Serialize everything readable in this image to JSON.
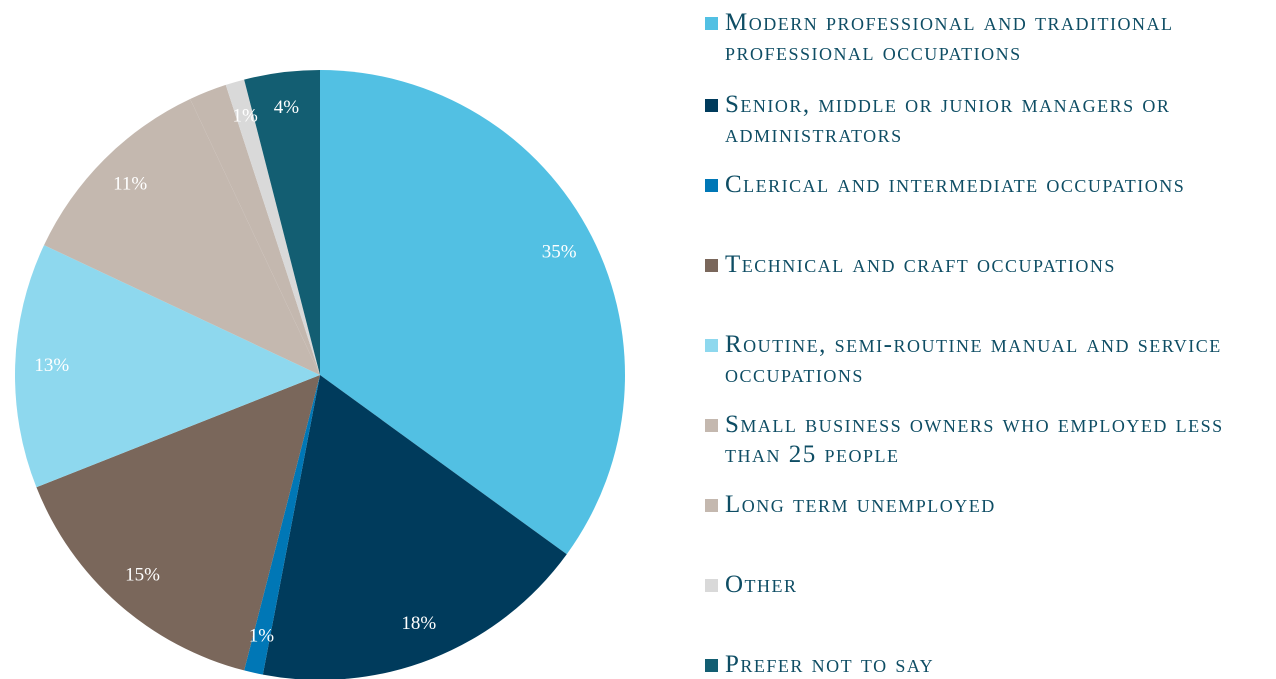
{
  "chart_data": {
    "type": "pie",
    "categories": [
      "Modern professional and traditional professional occupations",
      "Senior, middle or junior managers or administrators",
      "Clerical and intermediate occupations",
      "Technical and craft occupations",
      "Routine, semi-routine manual and service occupations",
      "Small business owners who employed less than 25 people",
      "Long term unemployed",
      "Other",
      "Prefer not to say"
    ],
    "values": [
      35,
      18,
      1,
      15,
      13,
      11,
      2,
      1,
      4
    ],
    "value_labels": [
      "35%",
      "18%",
      "1%",
      "15%",
      "13%",
      "11%",
      null,
      "1%",
      "4%"
    ],
    "colors": [
      "#52c0e3",
      "#003b5c",
      "#0077b6",
      "#7a675b",
      "#8ed8ee",
      "#c4b8af",
      "#c4b8af",
      "#d9d9d9",
      "#135e72"
    ],
    "legend": "right"
  }
}
